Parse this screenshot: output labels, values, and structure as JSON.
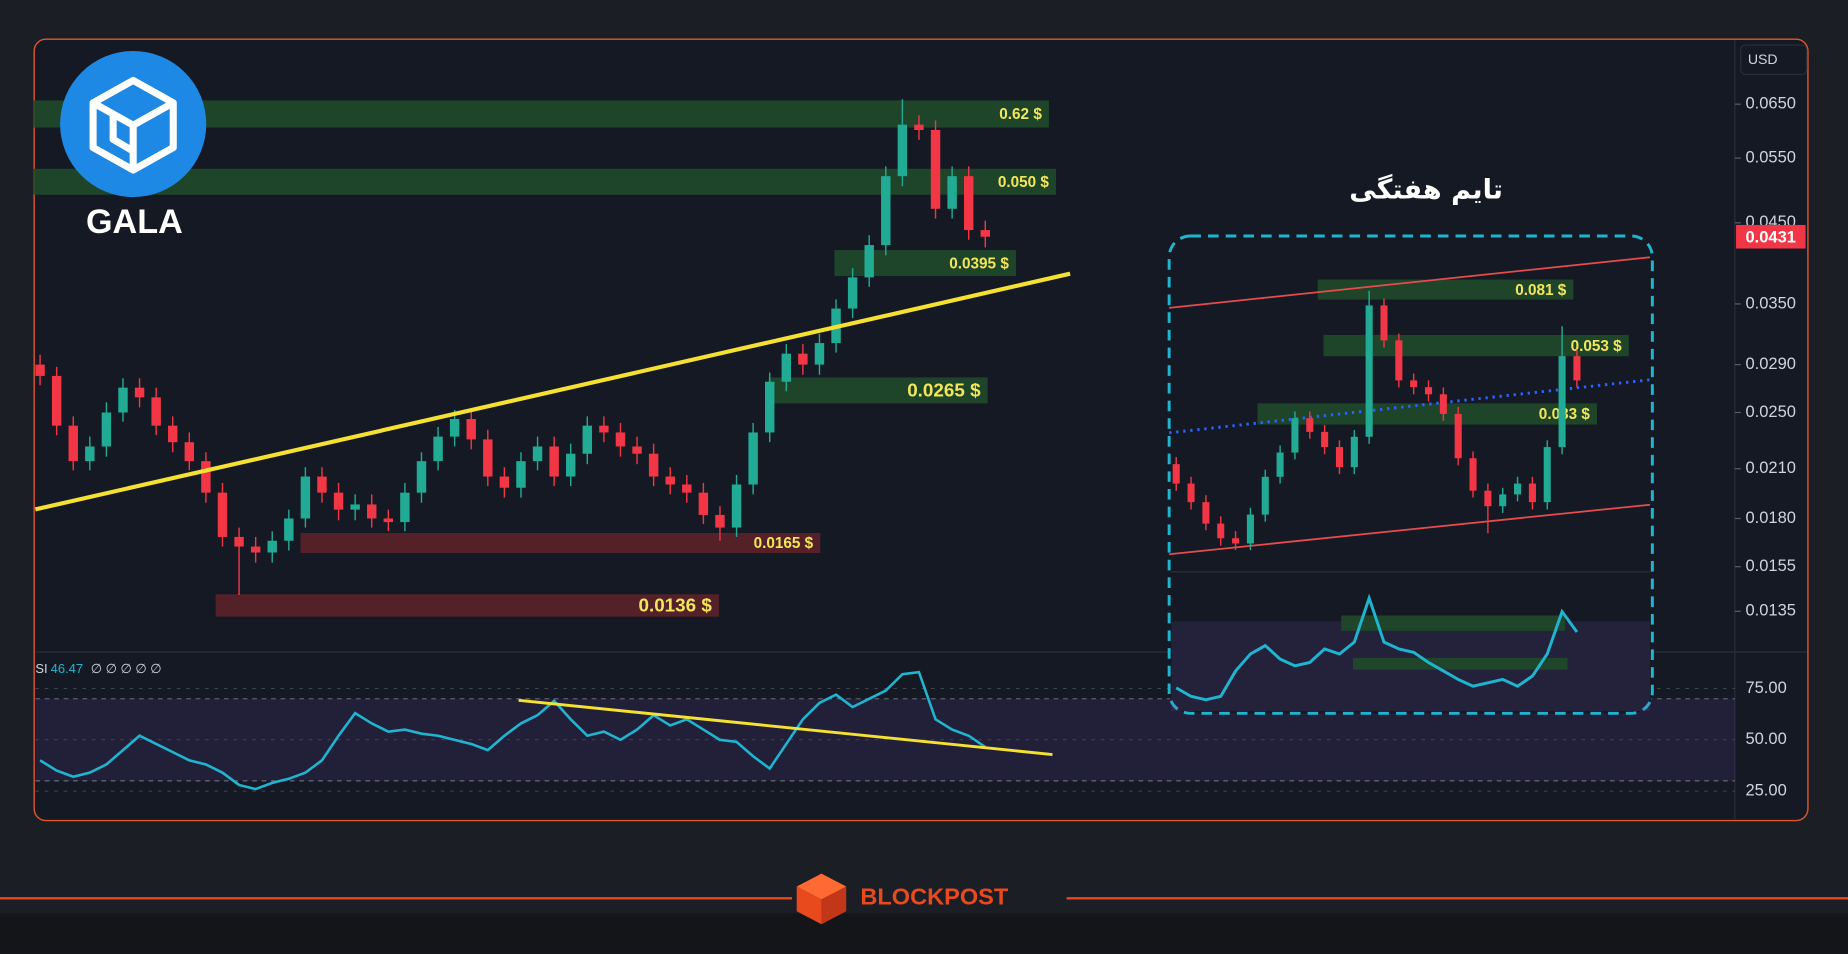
{
  "logo_text": "GALA",
  "brand": "BLOCKPOST",
  "chart_data": {
    "type": "candlestick",
    "currency": "USD",
    "yscale": "log",
    "colors": {
      "up": "#22ab94",
      "down": "#f23645",
      "zone_up": "#1f4a2a",
      "zone_down": "#5a2228",
      "zone_text": "#f4e65a",
      "last": "#f23645"
    },
    "open": [
      0.029,
      0.028,
      0.024,
      0.0215,
      0.0225,
      0.025,
      0.027,
      0.0262,
      0.024,
      0.0228,
      0.0215,
      0.0195,
      0.017,
      0.0165,
      0.0162,
      0.0168,
      0.018,
      0.0205,
      0.0195,
      0.0185,
      0.0188,
      0.018,
      0.0178,
      0.0195,
      0.0215,
      0.0232,
      0.0245,
      0.023,
      0.0205,
      0.0198,
      0.0215,
      0.0225,
      0.0205,
      0.022,
      0.024,
      0.0235,
      0.0225,
      0.022,
      0.0205,
      0.02,
      0.0195,
      0.0182,
      0.0175,
      0.02,
      0.0235,
      0.0275,
      0.03,
      0.029,
      0.031,
      0.0345,
      0.038,
      0.042,
      0.052,
      0.061,
      0.06,
      0.047,
      0.052,
      0.044
    ],
    "high": [
      0.0299,
      0.0288,
      0.0247,
      0.0232,
      0.0258,
      0.0278,
      0.0278,
      0.027,
      0.0247,
      0.0235,
      0.0221,
      0.0201,
      0.0175,
      0.017,
      0.0173,
      0.0185,
      0.0211,
      0.0211,
      0.0201,
      0.0194,
      0.0194,
      0.0185,
      0.0201,
      0.0221,
      0.0239,
      0.0252,
      0.0252,
      0.0237,
      0.0211,
      0.0221,
      0.0232,
      0.0232,
      0.0227,
      0.0247,
      0.0247,
      0.0242,
      0.0232,
      0.0227,
      0.0211,
      0.0206,
      0.0201,
      0.0187,
      0.0206,
      0.0242,
      0.0283,
      0.0309,
      0.0309,
      0.0319,
      0.0355,
      0.0391,
      0.0433,
      0.0536,
      0.066,
      0.0628,
      0.0618,
      0.0536,
      0.0536,
      0.0453
    ],
    "low": [
      0.0272,
      0.0233,
      0.0209,
      0.0209,
      0.0218,
      0.0243,
      0.0254,
      0.0233,
      0.0221,
      0.0209,
      0.0189,
      0.0165,
      0.0142,
      0.0157,
      0.0157,
      0.0163,
      0.0175,
      0.0189,
      0.0179,
      0.0179,
      0.0175,
      0.0173,
      0.0173,
      0.0189,
      0.0209,
      0.0225,
      0.0223,
      0.0199,
      0.0192,
      0.0192,
      0.0209,
      0.0199,
      0.0199,
      0.0213,
      0.0228,
      0.0218,
      0.0213,
      0.0199,
      0.0194,
      0.0189,
      0.0177,
      0.0168,
      0.017,
      0.0194,
      0.0228,
      0.0267,
      0.0281,
      0.0281,
      0.0301,
      0.0335,
      0.0369,
      0.0407,
      0.0504,
      0.0582,
      0.0456,
      0.0456,
      0.0427,
      0.0417
    ],
    "close": [
      0.028,
      0.024,
      0.0215,
      0.0225,
      0.025,
      0.027,
      0.0262,
      0.024,
      0.0228,
      0.0215,
      0.0195,
      0.017,
      0.0165,
      0.0162,
      0.0168,
      0.018,
      0.0205,
      0.0195,
      0.0185,
      0.0188,
      0.018,
      0.0178,
      0.0195,
      0.0215,
      0.0232,
      0.0245,
      0.023,
      0.0205,
      0.0198,
      0.0215,
      0.0225,
      0.0205,
      0.022,
      0.024,
      0.0235,
      0.0225,
      0.022,
      0.0205,
      0.02,
      0.0195,
      0.0182,
      0.0175,
      0.02,
      0.0235,
      0.0275,
      0.03,
      0.029,
      0.031,
      0.0345,
      0.038,
      0.042,
      0.052,
      0.061,
      0.06,
      0.047,
      0.052,
      0.044,
      0.0431
    ],
    "ylim": [
      0.0119,
      0.0775
    ],
    "yticks": [
      {
        "value": 0.065,
        "label": "0.0650"
      },
      {
        "value": 0.055,
        "label": "0.0550"
      },
      {
        "value": 0.045,
        "label": "0.0450"
      },
      {
        "value": 0.035,
        "label": "0.0350"
      },
      {
        "value": 0.029,
        "label": "0.0290"
      },
      {
        "value": 0.025,
        "label": "0.0250"
      },
      {
        "value": 0.021,
        "label": "0.0210"
      },
      {
        "value": 0.018,
        "label": "0.0180"
      },
      0.0155,
      0.0135
    ],
    "last_price": 0.0431,
    "zones": [
      {
        "label": "0.62 $",
        "kind": "up"
      },
      {
        "label": "0.050 $",
        "kind": "up"
      },
      {
        "label": "0.0395 $",
        "kind": "up"
      },
      {
        "label": "0.0265 $",
        "kind": "up"
      },
      {
        "label": "0.0165 $",
        "kind": "down"
      },
      {
        "label": "0.0136 $",
        "kind": "down"
      }
    ],
    "rsi": {
      "label": "SI",
      "extras": "∅ ∅ ∅ ∅ ∅",
      "color": "#1fb5d1",
      "values": [
        40,
        35,
        32,
        34,
        38,
        45,
        52,
        48,
        44,
        40,
        38,
        34,
        28,
        26,
        29,
        31,
        34,
        40,
        52,
        63,
        58,
        54,
        55,
        53,
        52,
        50,
        48,
        45,
        52,
        58,
        62,
        69,
        60,
        52,
        54,
        50,
        55,
        62,
        57,
        60,
        55,
        50,
        49,
        42,
        36,
        48,
        60,
        68,
        72,
        66,
        70,
        74,
        82,
        83,
        60,
        55,
        52,
        46.47
      ],
      "ylim": [
        14.1,
        92.8
      ],
      "band": [
        30,
        70
      ],
      "yticks": [
        {
          "value": 75,
          "label": "75.00"
        },
        {
          "value": 50,
          "label": "50.00"
        },
        {
          "value": 25,
          "label": "25.00"
        }
      ]
    },
    "inset": {
      "title": "تایم هفتگی",
      "open": [
        0.023,
        0.02,
        0.0175,
        0.015,
        0.0135,
        0.013,
        0.016,
        0.021,
        0.025,
        0.032,
        0.029,
        0.026,
        0.0225,
        0.028,
        0.072,
        0.056,
        0.042,
        0.04,
        0.038,
        0.033,
        0.024,
        0.019,
        0.017,
        0.0185,
        0.02,
        0.0175,
        0.026,
        0.05
      ],
      "high": [
        0.0242,
        0.021,
        0.0184,
        0.0158,
        0.0142,
        0.0168,
        0.0221,
        0.0263,
        0.0336,
        0.0336,
        0.0305,
        0.0273,
        0.0294,
        0.08,
        0.0756,
        0.0588,
        0.0441,
        0.042,
        0.0399,
        0.0347,
        0.0252,
        0.02,
        0.0194,
        0.021,
        0.021,
        0.0273,
        0.062,
        0.0525
      ],
      "low": [
        0.019,
        0.0166,
        0.0143,
        0.0128,
        0.0124,
        0.0124,
        0.0152,
        0.02,
        0.0238,
        0.0276,
        0.0247,
        0.0214,
        0.0214,
        0.0266,
        0.0532,
        0.0399,
        0.038,
        0.0361,
        0.0314,
        0.0228,
        0.0181,
        0.014,
        0.0162,
        0.0176,
        0.0166,
        0.0166,
        0.0247,
        0.0399
      ],
      "close": [
        0.02,
        0.0175,
        0.015,
        0.0135,
        0.013,
        0.016,
        0.021,
        0.025,
        0.032,
        0.029,
        0.026,
        0.0225,
        0.028,
        0.072,
        0.056,
        0.042,
        0.04,
        0.038,
        0.033,
        0.024,
        0.019,
        0.017,
        0.0185,
        0.02,
        0.0175,
        0.026,
        0.05,
        0.042
      ],
      "ylim": [
        0.0106,
        0.1137
      ],
      "zones": [
        {
          "label": "0.081 $",
          "kind": "up"
        },
        {
          "label": "0.053 $",
          "kind": "up"
        },
        {
          "label": "0.033 $",
          "kind": "up"
        }
      ],
      "rsi": {
        "values": [
          35,
          30,
          28,
          30,
          45,
          55,
          60,
          52,
          48,
          50,
          58,
          55,
          62,
          88,
          62,
          58,
          56,
          50,
          45,
          40,
          36,
          38,
          40,
          36,
          42,
          55,
          80,
          68
        ],
        "ylim": [
          20,
          100
        ]
      }
    }
  }
}
